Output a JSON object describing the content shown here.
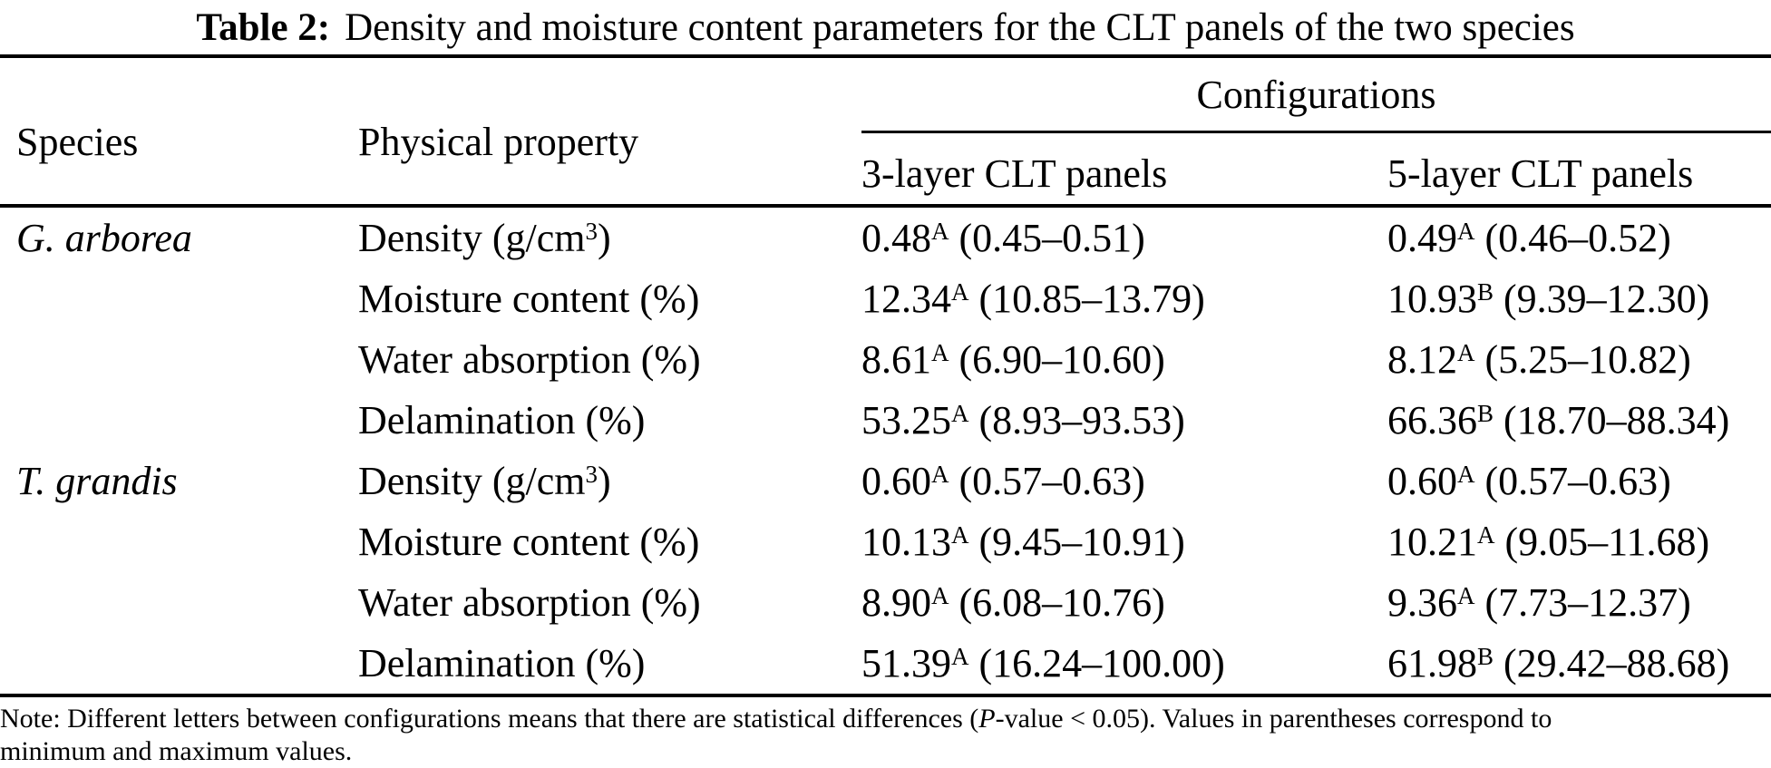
{
  "title": {
    "label": "Table 2:",
    "text": "Density and moisture content parameters for the CLT panels of the two species"
  },
  "header": {
    "species": "Species",
    "physical_property": "Physical property",
    "configurations": "Configurations",
    "config_3layer": "3-layer CLT panels",
    "config_5layer": "5-layer CLT panels"
  },
  "rows": [
    {
      "species": "G. arborea",
      "prop": {
        "pre": "Density (g/cm",
        "sup": "3",
        "post": ")"
      },
      "c3": {
        "v": "0.48",
        "s": "A",
        "r": " (0.45–0.51)"
      },
      "c5": {
        "v": "0.49",
        "s": "A",
        "r": " (0.46–0.52)"
      }
    },
    {
      "species": "",
      "prop": {
        "pre": "Moisture content (%)",
        "sup": "",
        "post": ""
      },
      "c3": {
        "v": "12.34",
        "s": "A",
        "r": " (10.85–13.79)"
      },
      "c5": {
        "v": "10.93",
        "s": "B",
        "r": " (9.39–12.30)"
      }
    },
    {
      "species": "",
      "prop": {
        "pre": "Water absorption (%)",
        "sup": "",
        "post": ""
      },
      "c3": {
        "v": "8.61",
        "s": "A",
        "r": " (6.90–10.60)"
      },
      "c5": {
        "v": "8.12",
        "s": "A",
        "r": " (5.25–10.82)"
      }
    },
    {
      "species": "",
      "prop": {
        "pre": "Delamination (%)",
        "sup": "",
        "post": ""
      },
      "c3": {
        "v": "53.25",
        "s": "A",
        "r": " (8.93–93.53)"
      },
      "c5": {
        "v": "66.36",
        "s": "B",
        "r": " (18.70–88.34)"
      }
    },
    {
      "species": "T. grandis",
      "prop": {
        "pre": "Density (g/cm",
        "sup": "3",
        "post": ")"
      },
      "c3": {
        "v": "0.60",
        "s": "A",
        "r": " (0.57–0.63)"
      },
      "c5": {
        "v": "0.60",
        "s": "A",
        "r": " (0.57–0.63)"
      }
    },
    {
      "species": "",
      "prop": {
        "pre": "Moisture content (%)",
        "sup": "",
        "post": ""
      },
      "c3": {
        "v": "10.13",
        "s": "A",
        "r": " (9.45–10.91)"
      },
      "c5": {
        "v": "10.21",
        "s": "A",
        "r": " (9.05–11.68)"
      }
    },
    {
      "species": "",
      "prop": {
        "pre": "Water absorption (%)",
        "sup": "",
        "post": ""
      },
      "c3": {
        "v": "8.90",
        "s": "A",
        "r": " (6.08–10.76)"
      },
      "c5": {
        "v": "9.36",
        "s": "A",
        "r": " (7.73–12.37)"
      }
    },
    {
      "species": "",
      "prop": {
        "pre": "Delamination (%)",
        "sup": "",
        "post": ""
      },
      "c3": {
        "v": "51.39",
        "s": "A",
        "r": " (16.24–100.00)"
      },
      "c5": {
        "v": "61.98",
        "s": "B",
        "r": " (29.42–88.68)"
      }
    }
  ],
  "note": {
    "line1_pre": "Note: Different letters between configurations means that there are statistical differences (",
    "p_italic": "P",
    "line1_post": "-value < 0.05). Values in parentheses correspond to",
    "line2": "minimum and maximum values."
  },
  "colors": {
    "text": "#000000",
    "background": "#ffffff",
    "rule": "#000000"
  }
}
